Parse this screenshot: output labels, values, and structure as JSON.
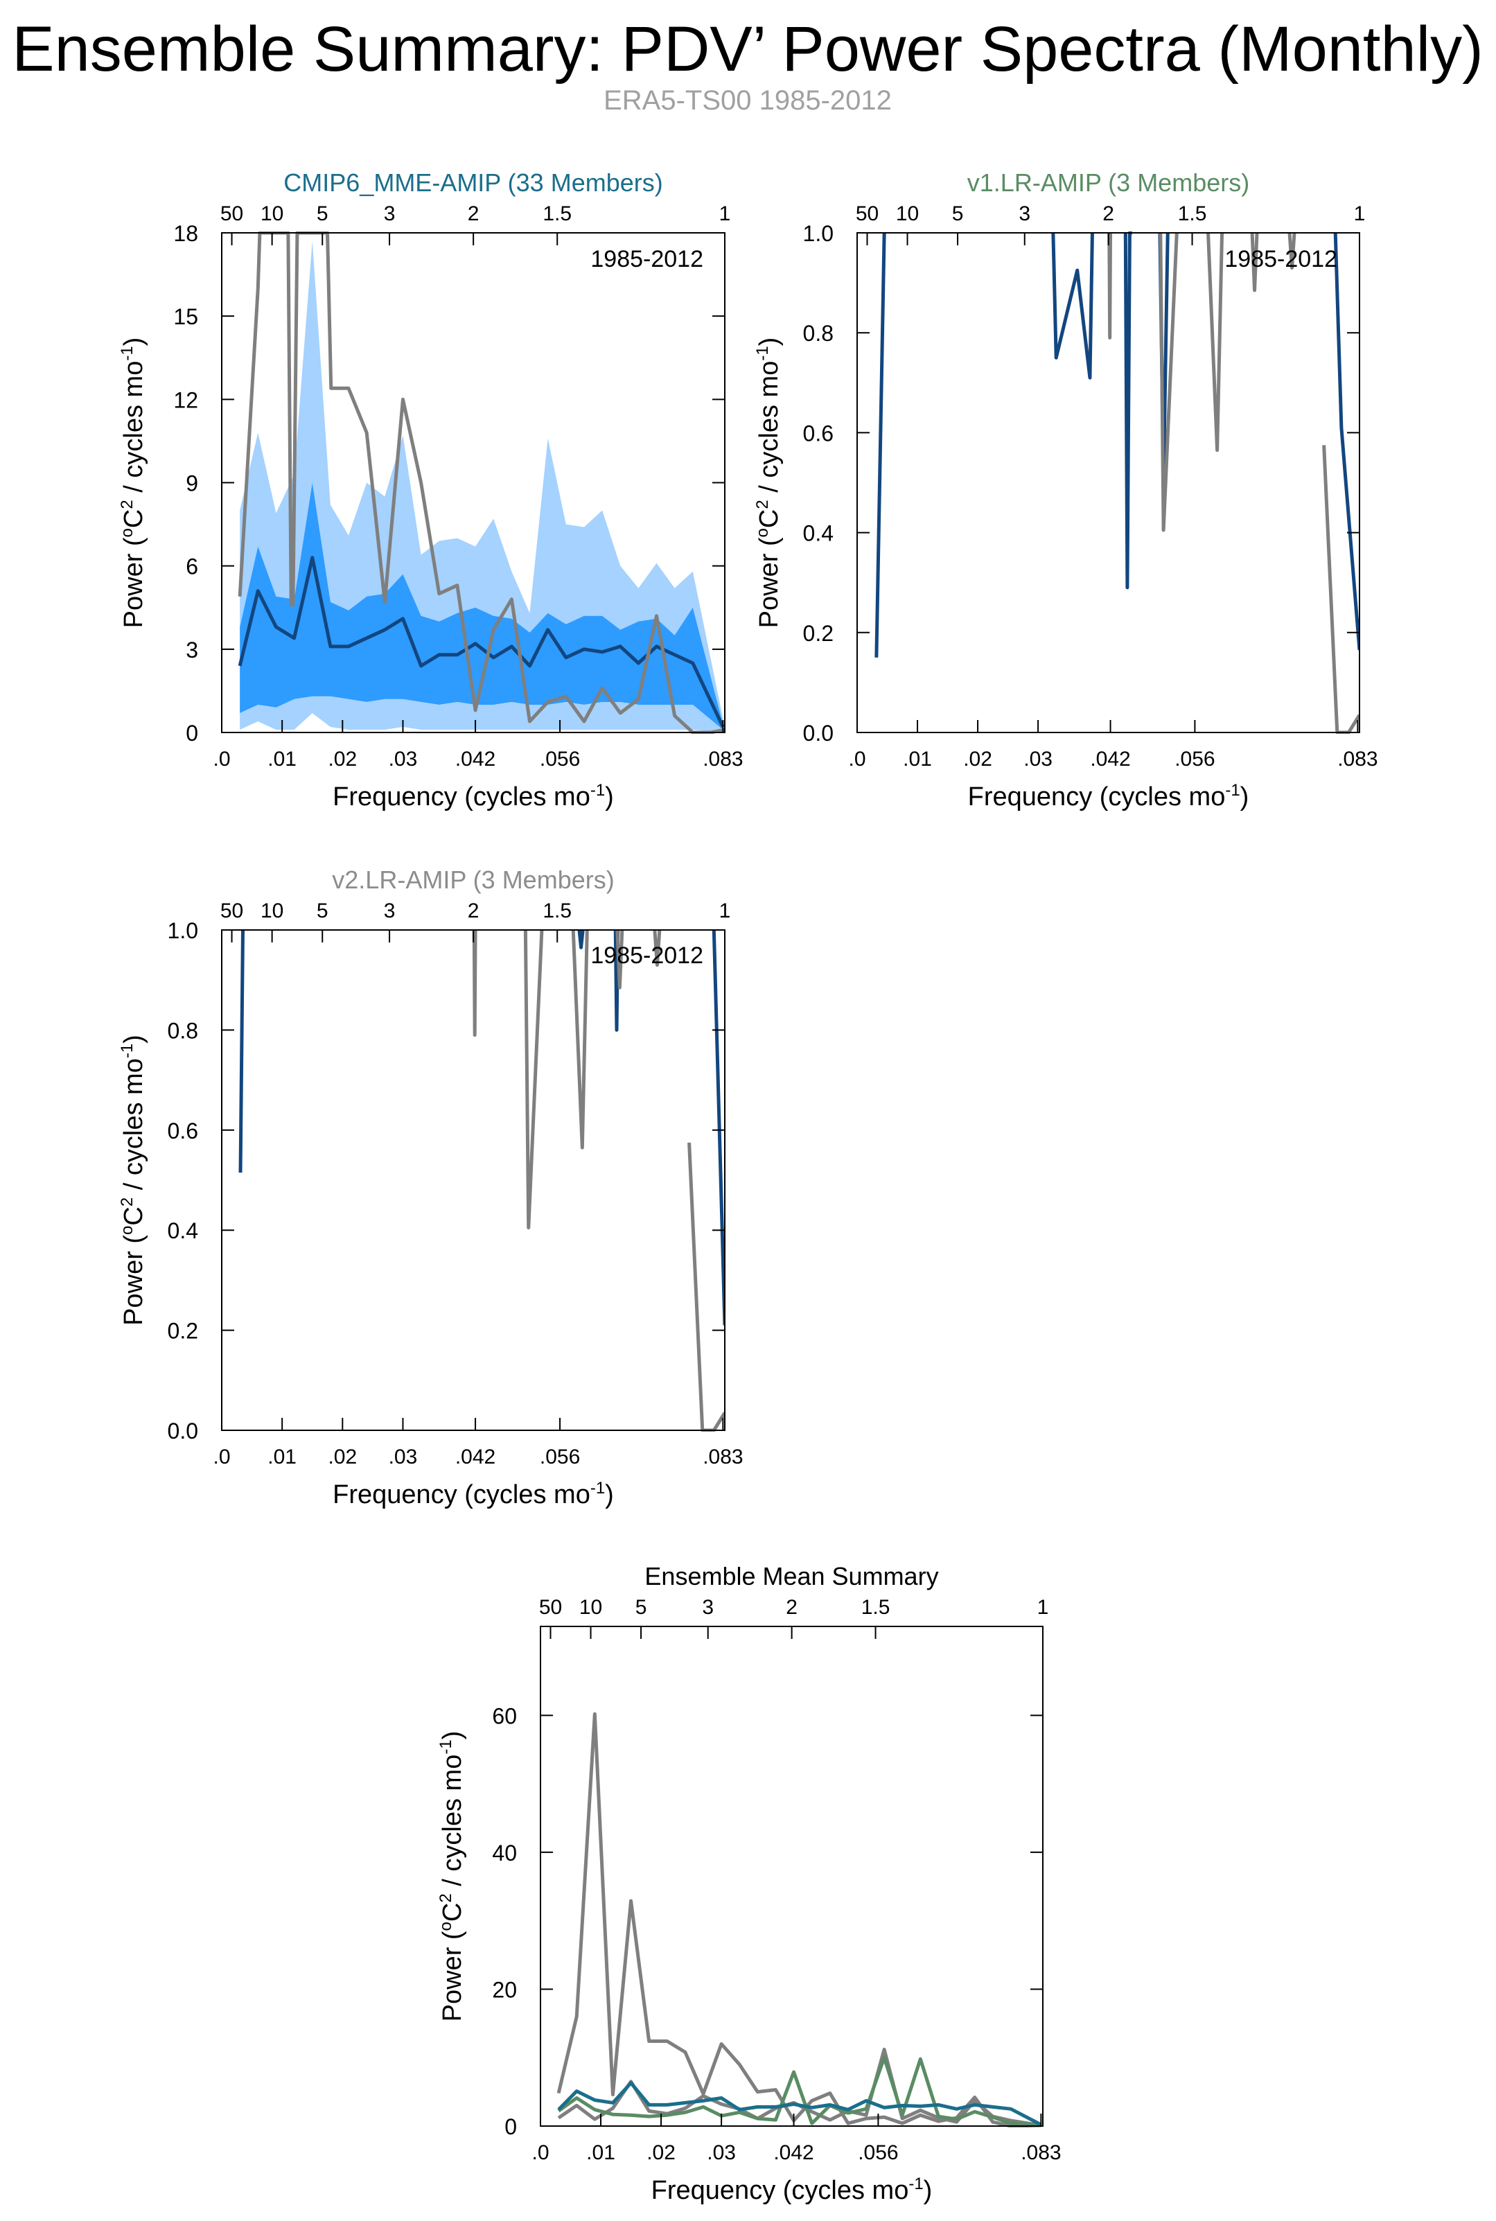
{
  "page": {
    "title": "Ensemble Summary: PDV’ Power Spectra (Monthly)",
    "subtitle": "ERA5-TS00 1985-2012"
  },
  "colors": {
    "cmip_title": "#1a6e8c",
    "v1_title": "#5a8c64",
    "v2_title": "#8c8c8c",
    "ens_mean": "#12467f",
    "ens_mean_summary": "#1a6e8c",
    "obs": "#7f7f7f",
    "band_outer": "#a5d2ff",
    "band_inner": "#2e9bff",
    "band_low": "#a5d2ff",
    "v1_line": "#5a8c64"
  },
  "chart_data": [
    {
      "id": "cmip",
      "type": "line",
      "title": "CMIP6_MME-AMIP (33 Members)",
      "annotation": "1985-2012",
      "xlabel": "Frequency (cycles mo",
      "xlabel_sup": "-1",
      "xlabel_end": ")",
      "ylabel": "Power (",
      "ylabel_sup1": "o",
      "ylabel_mid": "C",
      "ylabel_sup2": "2",
      "ylabel_end": " / cycles mo",
      "ylabel_sup3": "-1",
      "ylabel_end2": ")",
      "xlim": [
        0,
        0.0833
      ],
      "ylim": [
        0,
        18
      ],
      "yticks": [
        0,
        3,
        6,
        9,
        12,
        15,
        18
      ],
      "ytick_labels": [
        "0",
        "3",
        "6",
        "9",
        "12",
        "15",
        "18"
      ],
      "xticks": [
        0,
        0.01,
        0.02,
        0.03,
        0.042,
        0.056,
        0.083
      ],
      "xtick_labels": [
        ".0",
        ".01",
        ".02",
        ".03",
        ".042",
        ".056",
        ".083"
      ],
      "top_ticks": [
        0.02,
        0.1,
        0.2,
        0.3333,
        0.5,
        0.6667,
        1
      ],
      "top_tick_labels": [
        "50",
        "10",
        "5",
        "3",
        "2",
        "1.5",
        "1"
      ],
      "bands": {
        "x": [
          0.003,
          0.006,
          0.009,
          0.012,
          0.015,
          0.018,
          0.021,
          0.024,
          0.027,
          0.03,
          0.033,
          0.036,
          0.039,
          0.042,
          0.045,
          0.048,
          0.051,
          0.054,
          0.057,
          0.06,
          0.063,
          0.066,
          0.069,
          0.072,
          0.075,
          0.078,
          0.083
        ],
        "outer_upper": [
          8.0,
          10.8,
          7.9,
          9.3,
          17.7,
          8.2,
          7.1,
          9.0,
          8.5,
          10.7,
          6.4,
          6.9,
          7.0,
          6.7,
          7.7,
          5.8,
          4.3,
          10.6,
          7.5,
          7.4,
          8.0,
          6.0,
          5.2,
          6.1,
          5.2,
          5.8,
          0.5
        ],
        "inner_upper": [
          3.8,
          6.7,
          4.9,
          4.8,
          9.0,
          4.7,
          4.4,
          4.9,
          5.0,
          5.7,
          4.2,
          4.0,
          4.3,
          4.5,
          4.2,
          4.1,
          3.6,
          4.3,
          3.9,
          4.2,
          4.2,
          3.7,
          4.0,
          4.1,
          3.5,
          4.5,
          0.3
        ],
        "inner_lower": [
          0.7,
          1.0,
          0.9,
          1.2,
          1.3,
          1.3,
          1.2,
          1.1,
          1.2,
          1.2,
          1.1,
          1.0,
          1.1,
          1.0,
          1.0,
          1.1,
          1.0,
          1.0,
          1.1,
          1.0,
          1.1,
          1.1,
          1.0,
          1.0,
          1.0,
          1.0,
          0.1
        ],
        "outer_lower": [
          0.1,
          0.4,
          0.1,
          0.1,
          0.7,
          0.2,
          0.1,
          0.1,
          0.1,
          0.2,
          0.1,
          0.1,
          0.1,
          0.1,
          0.1,
          0.1,
          0.1,
          0.1,
          0.1,
          0.1,
          0.1,
          0.1,
          0.1,
          0.1,
          0.1,
          0.1,
          0.0
        ]
      },
      "series": [
        {
          "x": [
            0.003,
            0.006,
            0.009,
            0.012,
            0.015,
            0.018,
            0.021,
            0.024,
            0.027,
            0.03,
            0.033,
            0.036,
            0.039,
            0.042,
            0.045,
            0.048,
            0.051,
            0.054,
            0.057,
            0.06,
            0.063,
            0.066,
            0.069,
            0.072,
            0.075,
            0.078,
            0.083
          ],
          "y": [
            2.4,
            5.1,
            3.8,
            3.4,
            6.3,
            3.1,
            3.1,
            3.4,
            3.7,
            4.1,
            2.4,
            2.8,
            2.8,
            3.2,
            2.7,
            3.1,
            2.4,
            3.7,
            2.7,
            3.0,
            2.9,
            3.1,
            2.5,
            3.1,
            2.8,
            2.5,
            0.2
          ],
          "color": "#12467f",
          "width": 5
        },
        {
          "x": [
            0.003,
            0.006,
            0.0063,
            0.011,
            0.0115,
            0.0118,
            0.0125,
            0.0131,
            0.017,
            0.0175,
            0.0181,
            0.021,
            0.024,
            0.027,
            0.03,
            0.033,
            0.036,
            0.039,
            0.042,
            0.045,
            0.048,
            0.051,
            0.054,
            0.057,
            0.06,
            0.063,
            0.066,
            0.069,
            0.072,
            0.075,
            0.078,
            0.081,
            0.0833
          ],
          "y": [
            4.9,
            16.0,
            18.0,
            18.0,
            4.6,
            4.6,
            18.0,
            18.0,
            18.0,
            18.0,
            12.4,
            12.4,
            10.8,
            4.7,
            12.0,
            9.0,
            5.0,
            5.3,
            0.8,
            3.7,
            4.8,
            0.4,
            1.1,
            1.3,
            0.4,
            1.6,
            0.7,
            1.2,
            4.2,
            0.6,
            0.0,
            0.0,
            0.1
          ],
          "color": "#7f7f7f",
          "width": 5
        }
      ]
    },
    {
      "id": "v1",
      "type": "line",
      "title": "v1.LR-AMIP (3 Members)",
      "annotation": "1985-2012",
      "xlabel": "Frequency (cycles mo",
      "xlabel_sup": "-1",
      "xlabel_end": ")",
      "ylabel": "Power (",
      "ylabel_sup1": "o",
      "ylabel_mid": "C",
      "ylabel_sup2": "2",
      "ylabel_end": " / cycles mo",
      "ylabel_sup3": "-1",
      "ylabel_end2": ")",
      "xlim": [
        0,
        0.0833
      ],
      "ylim": [
        0,
        1
      ],
      "yticks": [
        0,
        0.2,
        0.4,
        0.6,
        0.8,
        1.0
      ],
      "ytick_labels": [
        "0.0",
        "0.2",
        "0.4",
        "0.6",
        "0.8",
        "1.0"
      ],
      "xticks": [
        0,
        0.01,
        0.02,
        0.03,
        0.042,
        0.056,
        0.083
      ],
      "xtick_labels": [
        ".0",
        ".01",
        ".02",
        ".03",
        ".042",
        ".056",
        ".083"
      ],
      "top_ticks": [
        0.02,
        0.1,
        0.2,
        0.3333,
        0.5,
        0.6667,
        1
      ],
      "top_tick_labels": [
        "50",
        "10",
        "5",
        "3",
        "2",
        "1.5",
        "1"
      ],
      "series": [
        {
          "x": [
            0.0032,
            0.0045
          ],
          "y": [
            0.15,
            1.0
          ],
          "color": "#12467f",
          "width": 5
        },
        {
          "x": [
            0.0325,
            0.033,
            0.0365,
            0.0386,
            0.039
          ],
          "y": [
            1.0,
            0.75,
            0.925,
            0.71,
            1.0
          ],
          "color": "#12467f",
          "width": 5
        },
        {
          "x": [
            0.0445,
            0.0448,
            0.0452,
            0.0456
          ],
          "y": [
            1.0,
            0.29,
            1.0,
            1.0
          ],
          "color": "#12467f",
          "width": 5
        },
        {
          "x": [
            0.0502,
            0.0508,
            0.0515
          ],
          "y": [
            1.0,
            0.5,
            1.0
          ],
          "color": "#12467f",
          "width": 5
        },
        {
          "x": [
            0.0793,
            0.0803,
            0.0833
          ],
          "y": [
            1.0,
            0.61,
            0.165
          ],
          "color": "#12467f",
          "width": 5
        },
        {
          "x": [
            0.0418,
            0.0419,
            0.042
          ],
          "y": [
            1.0,
            0.79,
            1.0
          ],
          "color": "#7f7f7f",
          "width": 5
        },
        {
          "x": [
            0.0503,
            0.0508,
            0.053
          ],
          "y": [
            1.0,
            0.405,
            1.0
          ],
          "color": "#7f7f7f",
          "width": 5
        },
        {
          "x": [
            0.0582,
            0.0597,
            0.0605
          ],
          "y": [
            1.0,
            0.565,
            1.0
          ],
          "color": "#7f7f7f",
          "width": 5
        },
        {
          "x": [
            0.0655,
            0.0659,
            0.0663
          ],
          "y": [
            1.0,
            0.885,
            1.0
          ],
          "color": "#7f7f7f",
          "width": 5
        },
        {
          "x": [
            0.0717,
            0.0721,
            0.0725
          ],
          "y": [
            1.0,
            0.93,
            1.0
          ],
          "color": "#7f7f7f",
          "width": 5
        },
        {
          "x": [
            0.0774,
            0.0796,
            0.0815,
            0.0833
          ],
          "y": [
            0.575,
            0.0,
            0.0,
            0.035
          ],
          "color": "#7f7f7f",
          "width": 5
        }
      ]
    },
    {
      "id": "v2",
      "type": "line",
      "title": "v2.LR-AMIP (3 Members)",
      "annotation": "1985-2012",
      "xlabel": "Frequency (cycles mo",
      "xlabel_sup": "-1",
      "xlabel_end": ")",
      "ylabel": "Power (",
      "ylabel_sup1": "o",
      "ylabel_mid": "C",
      "ylabel_sup2": "2",
      "ylabel_end": " / cycles mo",
      "ylabel_sup3": "-1",
      "ylabel_end2": ")",
      "xlim": [
        0,
        0.0833
      ],
      "ylim": [
        0,
        1
      ],
      "yticks": [
        0,
        0.2,
        0.4,
        0.6,
        0.8,
        1.0
      ],
      "ytick_labels": [
        "0.0",
        "0.2",
        "0.4",
        "0.6",
        "0.8",
        "1.0"
      ],
      "xticks": [
        0,
        0.01,
        0.02,
        0.03,
        0.042,
        0.056,
        0.083
      ],
      "xtick_labels": [
        ".0",
        ".01",
        ".02",
        ".03",
        ".042",
        ".056",
        ".083"
      ],
      "top_ticks": [
        0.02,
        0.1,
        0.2,
        0.3333,
        0.5,
        0.6667,
        1
      ],
      "top_tick_labels": [
        "50",
        "10",
        "5",
        "3",
        "2",
        "1.5",
        "1"
      ],
      "series": [
        {
          "x": [
            0.0031,
            0.0035
          ],
          "y": [
            0.515,
            1.0
          ],
          "color": "#12467f",
          "width": 5
        },
        {
          "x": [
            0.0592,
            0.0595,
            0.0598
          ],
          "y": [
            1.0,
            0.965,
            1.0
          ],
          "color": "#12467f",
          "width": 5
        },
        {
          "x": [
            0.0652,
            0.0654,
            0.0656
          ],
          "y": [
            1.0,
            0.8,
            1.0
          ],
          "color": "#12467f",
          "width": 5
        },
        {
          "x": [
            0.0815,
            0.0833
          ],
          "y": [
            1.0,
            0.21
          ],
          "color": "#12467f",
          "width": 5
        },
        {
          "x": [
            0.0418,
            0.0419,
            0.042
          ],
          "y": [
            1.0,
            0.79,
            1.0
          ],
          "color": "#7f7f7f",
          "width": 5
        },
        {
          "x": [
            0.0503,
            0.0508,
            0.053
          ],
          "y": [
            1.0,
            0.405,
            1.0
          ],
          "color": "#7f7f7f",
          "width": 5
        },
        {
          "x": [
            0.0582,
            0.0597,
            0.0605
          ],
          "y": [
            1.0,
            0.565,
            1.0
          ],
          "color": "#7f7f7f",
          "width": 5
        },
        {
          "x": [
            0.0655,
            0.0659,
            0.0663
          ],
          "y": [
            1.0,
            0.885,
            1.0
          ],
          "color": "#7f7f7f",
          "width": 5
        },
        {
          "x": [
            0.0717,
            0.0721,
            0.0725
          ],
          "y": [
            1.0,
            0.93,
            1.0
          ],
          "color": "#7f7f7f",
          "width": 5
        },
        {
          "x": [
            0.0774,
            0.0796,
            0.0815,
            0.0833
          ],
          "y": [
            0.575,
            0.0,
            0.0,
            0.035
          ],
          "color": "#7f7f7f",
          "width": 5
        }
      ]
    },
    {
      "id": "summary",
      "type": "line",
      "title": "Ensemble Mean Summary",
      "annotation": "",
      "xlabel": "Frequency (cycles mo",
      "xlabel_sup": "-1",
      "xlabel_end": ")",
      "ylabel": "Power (",
      "ylabel_sup1": "o",
      "ylabel_mid": "C",
      "ylabel_sup2": "2",
      "ylabel_end": " / cycles mo",
      "ylabel_sup3": "-1",
      "ylabel_end2": ")",
      "xlim": [
        0,
        0.0833
      ],
      "ylim": [
        0,
        73
      ],
      "yticks": [
        0,
        20,
        40,
        60
      ],
      "ytick_labels": [
        "0",
        "20",
        "40",
        "60"
      ],
      "xticks": [
        0,
        0.01,
        0.02,
        0.03,
        0.042,
        0.056,
        0.083
      ],
      "xtick_labels": [
        ".0",
        ".01",
        ".02",
        ".03",
        ".042",
        ".056",
        ".083"
      ],
      "top_ticks": [
        0.02,
        0.1,
        0.2,
        0.3333,
        0.5,
        0.6667,
        1
      ],
      "top_tick_labels": [
        "50",
        "10",
        "5",
        "3",
        "2",
        "1.5",
        "1"
      ],
      "series": [
        {
          "x": [
            0.003,
            0.006,
            0.009,
            0.012,
            0.015,
            0.018,
            0.021,
            0.024,
            0.027,
            0.03,
            0.033,
            0.036,
            0.039,
            0.042,
            0.045,
            0.048,
            0.051,
            0.054,
            0.057,
            0.06,
            0.063,
            0.066,
            0.069,
            0.072,
            0.075,
            0.078,
            0.083
          ],
          "y": [
            4.8,
            16.0,
            60.2,
            4.6,
            32.9,
            12.4,
            12.4,
            10.8,
            4.7,
            12.0,
            9.0,
            5.0,
            5.3,
            0.8,
            3.7,
            4.8,
            0.4,
            1.1,
            1.3,
            0.4,
            1.6,
            0.7,
            1.2,
            4.2,
            0.6,
            0.0,
            0.1
          ],
          "color": "#7f7f7f",
          "width": 5
        },
        {
          "x": [
            0.003,
            0.006,
            0.009,
            0.012,
            0.015,
            0.018,
            0.021,
            0.024,
            0.027,
            0.03,
            0.033,
            0.036,
            0.039,
            0.042,
            0.045,
            0.048,
            0.051,
            0.054,
            0.057,
            0.06,
            0.063,
            0.066,
            0.069,
            0.072,
            0.075,
            0.078,
            0.083
          ],
          "y": [
            1.2,
            3.0,
            1.0,
            2.6,
            6.5,
            2.2,
            1.8,
            2.6,
            4.4,
            3.2,
            2.5,
            1.1,
            2.6,
            3.4,
            2.1,
            0.9,
            2.2,
            1.6,
            11.2,
            1.1,
            2.3,
            1.2,
            0.6,
            3.7,
            1.4,
            0.8,
            0.1
          ],
          "color": "#7f7f7f",
          "width": 5
        },
        {
          "x": [
            0.003,
            0.006,
            0.009,
            0.012,
            0.015,
            0.018,
            0.021,
            0.024,
            0.027,
            0.03,
            0.033,
            0.036,
            0.039,
            0.042,
            0.045,
            0.048,
            0.051,
            0.054,
            0.057,
            0.06,
            0.063,
            0.066,
            0.069,
            0.072,
            0.075,
            0.078,
            0.083
          ],
          "y": [
            2.2,
            4.1,
            2.4,
            1.7,
            1.6,
            1.4,
            1.6,
            2.0,
            2.8,
            1.5,
            2.0,
            1.1,
            0.9,
            7.9,
            0.4,
            3.0,
            1.9,
            2.5,
            10.0,
            1.6,
            9.8,
            1.4,
            1.0,
            2.1,
            1.3,
            0.4,
            0.1
          ],
          "color": "#5a8c64",
          "width": 5
        },
        {
          "x": [
            0.003,
            0.006,
            0.009,
            0.012,
            0.015,
            0.018,
            0.021,
            0.024,
            0.027,
            0.03,
            0.033,
            0.036,
            0.039,
            0.042,
            0.045,
            0.048,
            0.051,
            0.054,
            0.057,
            0.06,
            0.063,
            0.066,
            0.069,
            0.072,
            0.075,
            0.078,
            0.083
          ],
          "y": [
            2.4,
            5.1,
            3.8,
            3.4,
            6.3,
            3.1,
            3.1,
            3.4,
            3.7,
            4.1,
            2.4,
            2.8,
            2.8,
            3.2,
            2.7,
            3.1,
            2.4,
            3.7,
            2.7,
            3.0,
            2.9,
            3.1,
            2.5,
            3.1,
            2.8,
            2.5,
            0.2
          ],
          "color": "#1a6e8c",
          "width": 5
        }
      ]
    }
  ]
}
